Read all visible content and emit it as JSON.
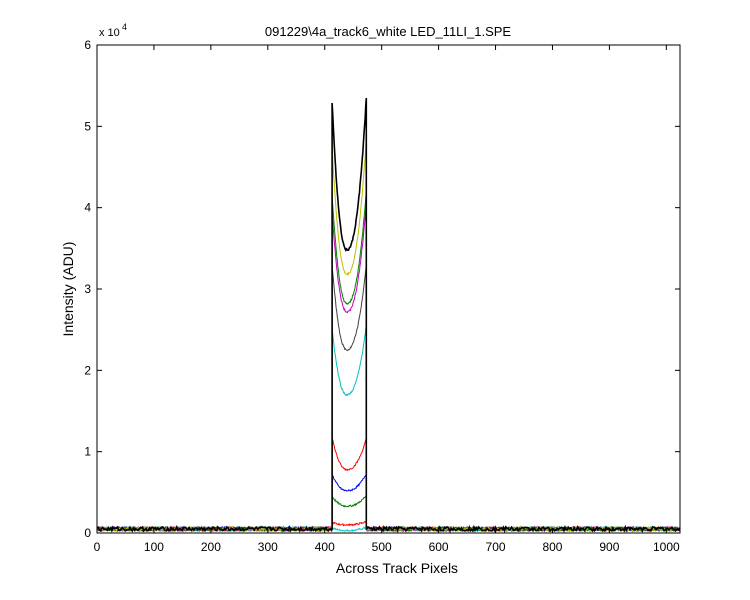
{
  "chart_data": {
    "type": "line",
    "title": "091229\\4a_track6_white LED_11LI_1.SPE",
    "xlabel": "Across Track Pixels",
    "ylabel": "Intensity (ADU)",
    "y_exponent_label": "x 10",
    "y_exponent_power": "4",
    "xlim": [
      0,
      1024
    ],
    "ylim": [
      0,
      6
    ],
    "y_scale_multiplier": 10000,
    "x_ticks": [
      "0",
      "100",
      "200",
      "300",
      "400",
      "500",
      "600",
      "700",
      "800",
      "900",
      "1000"
    ],
    "y_ticks": [
      "0",
      "1",
      "2",
      "3",
      "4",
      "5",
      "6"
    ],
    "grid": false,
    "legend": "none",
    "baseline": 0.05,
    "band": {
      "x_start": 413,
      "x_end": 473,
      "x_center": 439
    },
    "series": [
      {
        "color": "#00cccc",
        "left": 0.06,
        "right": 0.07,
        "center": 0.03
      },
      {
        "color": "#ff0000",
        "left": 0.13,
        "right": 0.14,
        "center": 0.1
      },
      {
        "color": "#008000",
        "left": 0.45,
        "right": 0.46,
        "center": 0.33
      },
      {
        "color": "#0000ff",
        "left": 0.72,
        "right": 0.73,
        "center": 0.52
      },
      {
        "color": "#ff0000",
        "left": 1.18,
        "right": 1.16,
        "center": 0.78
      },
      {
        "color": "#00bfbf",
        "left": 2.52,
        "right": 2.55,
        "center": 1.7
      },
      {
        "color": "#404040",
        "left": 3.3,
        "right": 3.3,
        "center": 2.25
      },
      {
        "color": "#bf00bf",
        "left": 3.95,
        "right": 4.05,
        "center": 2.72
      },
      {
        "color": "#008000",
        "left": 4.15,
        "right": 4.2,
        "center": 2.82
      },
      {
        "color": "#bfbf00",
        "left": 4.75,
        "right": 4.85,
        "center": 3.18
      },
      {
        "color": "#000000",
        "left": 5.3,
        "right": 5.35,
        "center": 3.48
      }
    ]
  }
}
